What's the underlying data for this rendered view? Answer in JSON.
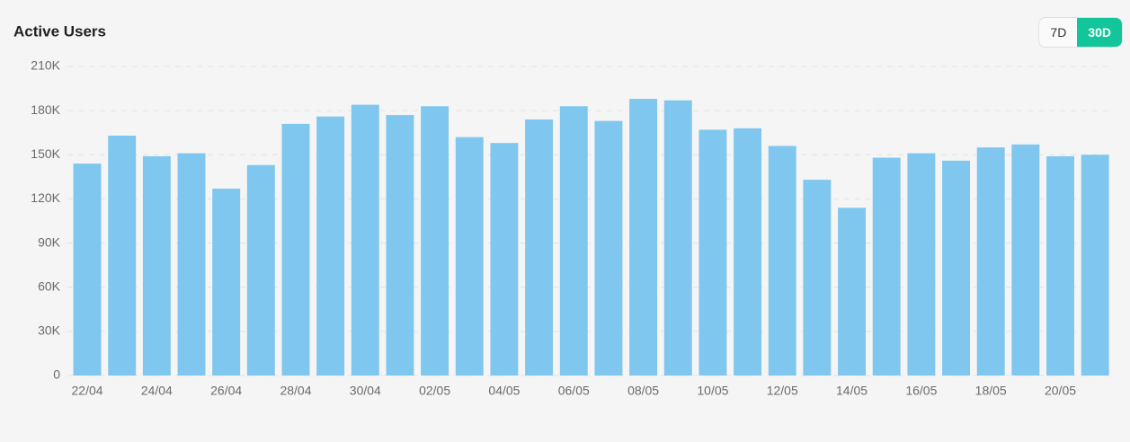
{
  "range_options": [
    "7D",
    "30D"
  ],
  "chart_data": {
    "type": "bar",
    "title": "Active Users",
    "categories": [
      "22/04",
      null,
      "24/04",
      null,
      "26/04",
      null,
      "28/04",
      null,
      "30/04",
      null,
      "02/05",
      null,
      "04/05",
      null,
      "06/05",
      null,
      "08/05",
      null,
      "10/05",
      null,
      "12/05",
      null,
      "14/05",
      null,
      "16/05",
      null,
      "18/05",
      null,
      "20/05",
      null
    ],
    "values": [
      144000,
      163000,
      149000,
      151000,
      127000,
      143000,
      171000,
      176000,
      184000,
      177000,
      183000,
      162000,
      158000,
      174000,
      183000,
      173000,
      188000,
      187000,
      167000,
      168000,
      156000,
      133000,
      114000,
      148000,
      151000,
      146000,
      155000,
      157000,
      149000,
      150000
    ],
    "color": "#7fc7ee",
    "ylim": [
      0,
      210000
    ],
    "yticks": [
      0,
      {
        "value": 30000,
        "label": "30K"
      },
      {
        "value": 60000,
        "label": "60K"
      },
      {
        "value": 90000,
        "label": "90K"
      },
      {
        "value": 120000,
        "label": "120K"
      },
      {
        "value": 150000,
        "label": "150K"
      },
      {
        "value": 180000,
        "label": "180K"
      },
      {
        "value": 210000,
        "label": "210K"
      }
    ],
    "grid": true
  }
}
